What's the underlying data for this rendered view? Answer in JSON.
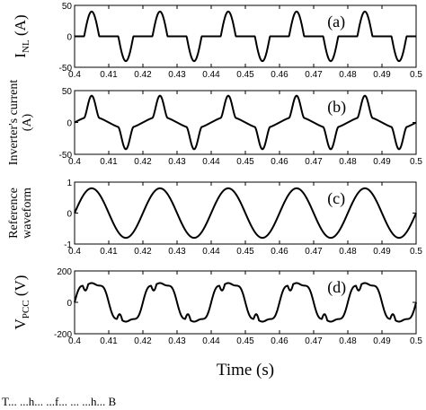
{
  "caption": "T... ...h... ...f... ... ...h... B",
  "x_label": "Time (s)",
  "chart_data": [
    {
      "type": "line",
      "panel_label": "(a)",
      "ylabel": "I_NL (A)",
      "xlim": [
        0.4,
        0.5
      ],
      "ylim": [
        -50,
        50
      ],
      "x_ticks": [
        "0.4",
        "0.41",
        "0.42",
        "0.43",
        "0.44",
        "0.45",
        "0.46",
        "0.47",
        "0.48",
        "0.49",
        "0.5"
      ],
      "y_ticks": [
        "50",
        "0",
        "-50"
      ],
      "series": [
        {
          "waveform": "rectifier_current",
          "frequency_hz": 50,
          "amplitude": 40,
          "phase_deg": 0
        }
      ]
    },
    {
      "type": "line",
      "panel_label": "(b)",
      "ylabel": "Inverter's current (A)",
      "xlim": [
        0.4,
        0.5
      ],
      "ylim": [
        -50,
        50
      ],
      "x_ticks": [
        "0.4",
        "0.41",
        "0.42",
        "0.43",
        "0.44",
        "0.45",
        "0.46",
        "0.47",
        "0.48",
        "0.49",
        "0.5"
      ],
      "y_ticks": [
        "50",
        "0",
        "-50"
      ],
      "series": [
        {
          "waveform": "inverter_current",
          "frequency_hz": 50,
          "amplitude": 42,
          "phase_deg": 0
        }
      ]
    },
    {
      "type": "line",
      "panel_label": "(c)",
      "ylabel": "Reference waveform",
      "xlim": [
        0.4,
        0.5
      ],
      "ylim": [
        -1,
        1
      ],
      "x_ticks": [
        "0.4",
        "0.41",
        "0.42",
        "0.43",
        "0.44",
        "0.45",
        "0.46",
        "0.47",
        "0.48",
        "0.49",
        "0.5"
      ],
      "y_ticks": [
        "1",
        "0",
        "-1"
      ],
      "series": [
        {
          "waveform": "sine",
          "frequency_hz": 50,
          "amplitude": 0.8,
          "phase_deg": 0
        }
      ]
    },
    {
      "type": "line",
      "panel_label": "(d)",
      "ylabel": "V_PCC (V)",
      "xlim": [
        0.4,
        0.5
      ],
      "ylim": [
        -200,
        200
      ],
      "x_ticks": [
        "0.4",
        "0.41",
        "0.42",
        "0.43",
        "0.44",
        "0.45",
        "0.46",
        "0.47",
        "0.48",
        "0.49",
        "0.5"
      ],
      "y_ticks": [
        "200",
        "0",
        "-200"
      ],
      "series": [
        {
          "waveform": "distorted_voltage",
          "frequency_hz": 50,
          "amplitude": 130,
          "phase_deg": 0
        }
      ]
    }
  ]
}
